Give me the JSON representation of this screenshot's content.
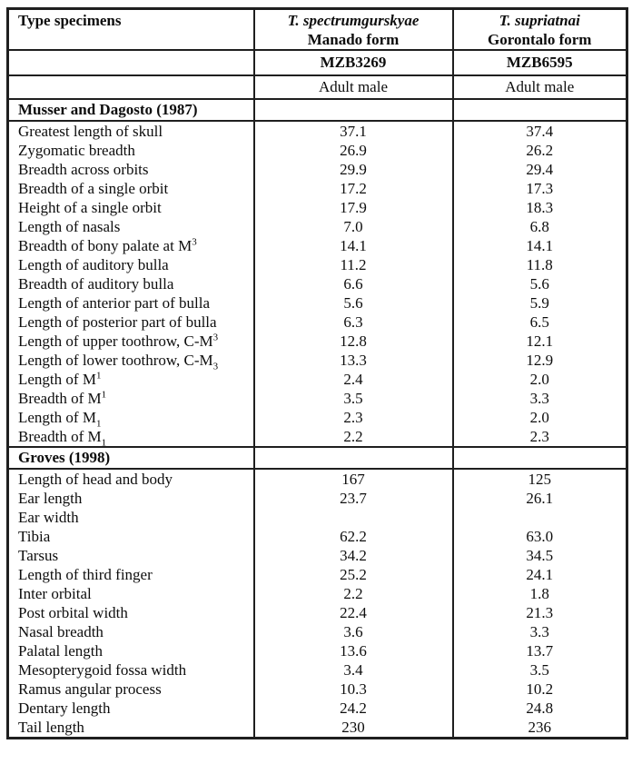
{
  "table": {
    "header": {
      "col1_title": "Type specimens",
      "columns": [
        {
          "species": "T. spectrumgurskyae",
          "form": "Manado form",
          "id": "MZB3269",
          "sex": "Adult male"
        },
        {
          "species": "T. supriatnai",
          "form": "Gorontalo form",
          "id": "MZB6595",
          "sex": "Adult male"
        }
      ]
    },
    "sections": [
      {
        "heading": "Musser and Dagosto (1987)",
        "rows": [
          {
            "label": "Greatest length of skull",
            "values": [
              "37.1",
              "37.4"
            ]
          },
          {
            "label": "Zygomatic breadth",
            "values": [
              "26.9",
              "26.2"
            ]
          },
          {
            "label": "Breadth across orbits",
            "values": [
              "29.9",
              "29.4"
            ]
          },
          {
            "label": "Breadth of a single orbit",
            "values": [
              "17.2",
              "17.3"
            ]
          },
          {
            "label": "Height of a single orbit",
            "values": [
              "17.9",
              "18.3"
            ]
          },
          {
            "label": "Length of nasals",
            "values": [
              "7.0",
              "6.8"
            ]
          },
          {
            "label": "Breadth of bony palate at M^3",
            "values": [
              "14.1",
              "14.1"
            ]
          },
          {
            "label": "Length of auditory bulla",
            "values": [
              "11.2",
              "11.8"
            ]
          },
          {
            "label": "Breadth of auditory bulla",
            "values": [
              "6.6",
              "5.6"
            ]
          },
          {
            "label": "Length of anterior part of bulla",
            "values": [
              "5.6",
              "5.9"
            ]
          },
          {
            "label": "Length of posterior part of bulla",
            "values": [
              "6.3",
              "6.5"
            ]
          },
          {
            "label": "Length of upper toothrow, C-M^3",
            "values": [
              "12.8",
              "12.1"
            ]
          },
          {
            "label": "Length of lower toothrow, C-M_3",
            "values": [
              "13.3",
              "12.9"
            ]
          },
          {
            "label": "Length of M^1",
            "values": [
              "2.4",
              "2.0"
            ]
          },
          {
            "label": "Breadth of M^1",
            "values": [
              "3.5",
              "3.3"
            ]
          },
          {
            "label": "Length of M_1",
            "values": [
              "2.3",
              "2.0"
            ]
          },
          {
            "label": "Breadth of M_1",
            "values": [
              "2.2",
              "2.3"
            ]
          }
        ]
      },
      {
        "heading": "Groves (1998)",
        "rows": [
          {
            "label": "Length of head and body",
            "values": [
              "167",
              "125"
            ]
          },
          {
            "label": "Ear length",
            "values": [
              "23.7",
              "26.1"
            ]
          },
          {
            "label": "Ear width",
            "values": [
              "",
              ""
            ]
          },
          {
            "label": "Tibia",
            "values": [
              "62.2",
              "63.0"
            ]
          },
          {
            "label": "Tarsus",
            "values": [
              "34.2",
              "34.5"
            ]
          },
          {
            "label": "Length of third finger",
            "values": [
              "25.2",
              "24.1"
            ]
          },
          {
            "label": "Inter orbital",
            "values": [
              "2.2",
              "1.8"
            ]
          },
          {
            "label": "Post orbital width",
            "values": [
              "22.4",
              "21.3"
            ]
          },
          {
            "label": "Nasal breadth",
            "values": [
              "3.6",
              "3.3"
            ]
          },
          {
            "label": "Palatal length",
            "values": [
              "13.6",
              "13.7"
            ]
          },
          {
            "label": "Mesopterygoid fossa width",
            "values": [
              "3.4",
              "3.5"
            ]
          },
          {
            "label": "Ramus angular process",
            "values": [
              "10.3",
              "10.2"
            ]
          },
          {
            "label": "Dentary length",
            "values": [
              "24.2",
              "24.8"
            ]
          },
          {
            "label": "Tail length",
            "values": [
              "230",
              "236"
            ]
          }
        ]
      }
    ]
  }
}
